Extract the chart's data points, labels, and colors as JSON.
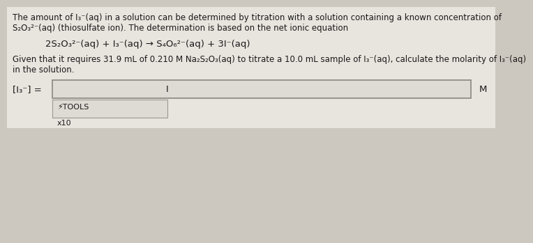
{
  "bg_color": "#cdc8bf",
  "top_bg_color": "#e8e4de",
  "text_color": "#1a1a1a",
  "paragraph1_line1": "The amount of I₃⁻(aq) in a solution can be determined by titration with a solution containing a known concentration of",
  "paragraph1_line2": "S₂O₃²⁻(aq) (thiosulfate ion). The determination is based on the net ionic equation",
  "equation": "2S₂O₃²⁻(aq) + I₃⁻(aq) → S₄O₆²⁻(aq) + 3I⁻(aq)",
  "paragraph2_line1": "Given that it requires 31.9 mL of 0.210 M Na₂S₂O₃(aq) to titrate a 10.0 mL sample of I₃⁻(aq), calculate the molarity of I₃⁻(aq)",
  "paragraph2_line2": "in the solution.",
  "label_left": "[I₃⁻] =",
  "label_right": "M",
  "input_cursor": "I",
  "tools_label": "⚡TOOLS",
  "x10_label": "x10",
  "input_box_facecolor": "#dedad4",
  "input_box_edgecolor": "#888880",
  "tools_box_facecolor": "#dedad4",
  "tools_box_edgecolor": "#999990",
  "font_size_main": 8.5,
  "font_size_eq": 9.5,
  "font_size_label": 9.5,
  "font_size_tools": 8.0
}
